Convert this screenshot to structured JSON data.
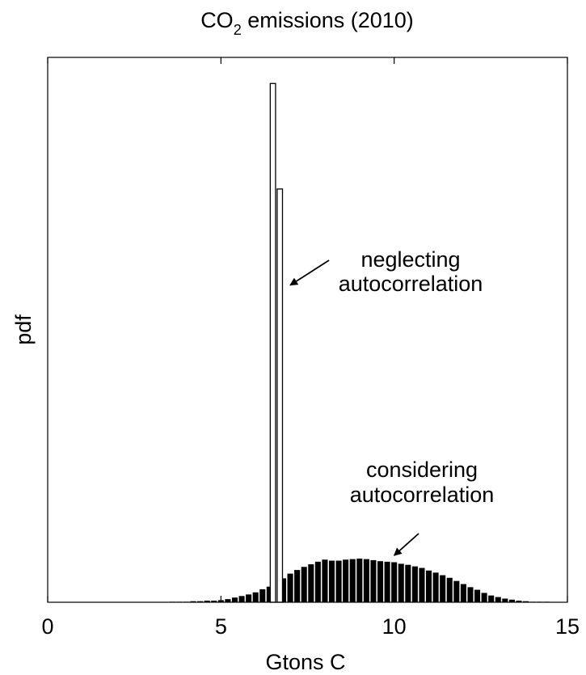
{
  "chart_data": {
    "type": "bar",
    "title": {
      "main": "CO",
      "subscript": "2",
      "rest": " emissions (2010)"
    },
    "xlabel": "Gtons C",
    "ylabel": "pdf",
    "xlim": [
      0,
      15
    ],
    "ylim": [
      0,
      1
    ],
    "xticks": [
      0,
      5,
      10,
      15
    ],
    "xtick_labels": [
      "0",
      "5",
      "10",
      "15"
    ],
    "top_ticks": [
      0,
      5,
      10,
      15
    ],
    "bin_width": 0.2,
    "grid": false,
    "legend": "none",
    "series": [
      {
        "fill": "#000000",
        "bins": [
          {
            "x": 3.6,
            "y": 0.001
          },
          {
            "x": 3.8,
            "y": 0.001
          },
          {
            "x": 4.0,
            "y": 0.001
          },
          {
            "x": 4.2,
            "y": 0.002
          },
          {
            "x": 4.4,
            "y": 0.002
          },
          {
            "x": 4.6,
            "y": 0.003
          },
          {
            "x": 4.8,
            "y": 0.003
          },
          {
            "x": 5.0,
            "y": 0.004
          },
          {
            "x": 5.2,
            "y": 0.006
          },
          {
            "x": 5.4,
            "y": 0.009
          },
          {
            "x": 5.6,
            "y": 0.012
          },
          {
            "x": 5.8,
            "y": 0.015
          },
          {
            "x": 6.0,
            "y": 0.019
          },
          {
            "x": 6.2,
            "y": 0.025
          },
          {
            "x": 6.4,
            "y": 0.03
          },
          {
            "x": 6.8,
            "y": 0.046
          },
          {
            "x": 7.0,
            "y": 0.055
          },
          {
            "x": 7.2,
            "y": 0.062
          },
          {
            "x": 7.4,
            "y": 0.068
          },
          {
            "x": 7.6,
            "y": 0.073
          },
          {
            "x": 7.8,
            "y": 0.078
          },
          {
            "x": 8.0,
            "y": 0.082
          },
          {
            "x": 8.2,
            "y": 0.08
          },
          {
            "x": 8.4,
            "y": 0.08
          },
          {
            "x": 8.6,
            "y": 0.082
          },
          {
            "x": 8.8,
            "y": 0.083
          },
          {
            "x": 9.0,
            "y": 0.084
          },
          {
            "x": 9.2,
            "y": 0.083
          },
          {
            "x": 9.4,
            "y": 0.081
          },
          {
            "x": 9.6,
            "y": 0.079
          },
          {
            "x": 9.8,
            "y": 0.078
          },
          {
            "x": 10.0,
            "y": 0.077
          },
          {
            "x": 10.2,
            "y": 0.074
          },
          {
            "x": 10.4,
            "y": 0.072
          },
          {
            "x": 10.6,
            "y": 0.069
          },
          {
            "x": 10.8,
            "y": 0.066
          },
          {
            "x": 11.0,
            "y": 0.061
          },
          {
            "x": 11.2,
            "y": 0.057
          },
          {
            "x": 11.4,
            "y": 0.052
          },
          {
            "x": 11.6,
            "y": 0.047
          },
          {
            "x": 11.8,
            "y": 0.041
          },
          {
            "x": 12.0,
            "y": 0.035
          },
          {
            "x": 12.2,
            "y": 0.029
          },
          {
            "x": 12.4,
            "y": 0.024
          },
          {
            "x": 12.6,
            "y": 0.018
          },
          {
            "x": 12.8,
            "y": 0.013
          },
          {
            "x": 13.0,
            "y": 0.01
          },
          {
            "x": 13.2,
            "y": 0.007
          },
          {
            "x": 13.4,
            "y": 0.005
          },
          {
            "x": 13.6,
            "y": 0.003
          },
          {
            "x": 13.8,
            "y": 0.002
          },
          {
            "x": 14.0,
            "y": 0.001
          },
          {
            "x": 14.2,
            "y": 0.001
          },
          {
            "x": 14.4,
            "y": 0.001
          }
        ]
      },
      {
        "fill": "#ffffff",
        "stroke": "#000000",
        "bins": [
          {
            "x": 6.5,
            "y": 0.998
          },
          {
            "x": 6.7,
            "y": 0.795
          }
        ]
      }
    ],
    "annotations": [
      {
        "lines": [
          "neglecting",
          "autocorrelation"
        ],
        "arrow_to": {
          "x": 7.0,
          "y": 0.61
        }
      },
      {
        "lines": [
          "considering",
          "autocorrelation"
        ],
        "arrow_to": {
          "x": 10.0,
          "y": 0.09
        }
      }
    ]
  }
}
